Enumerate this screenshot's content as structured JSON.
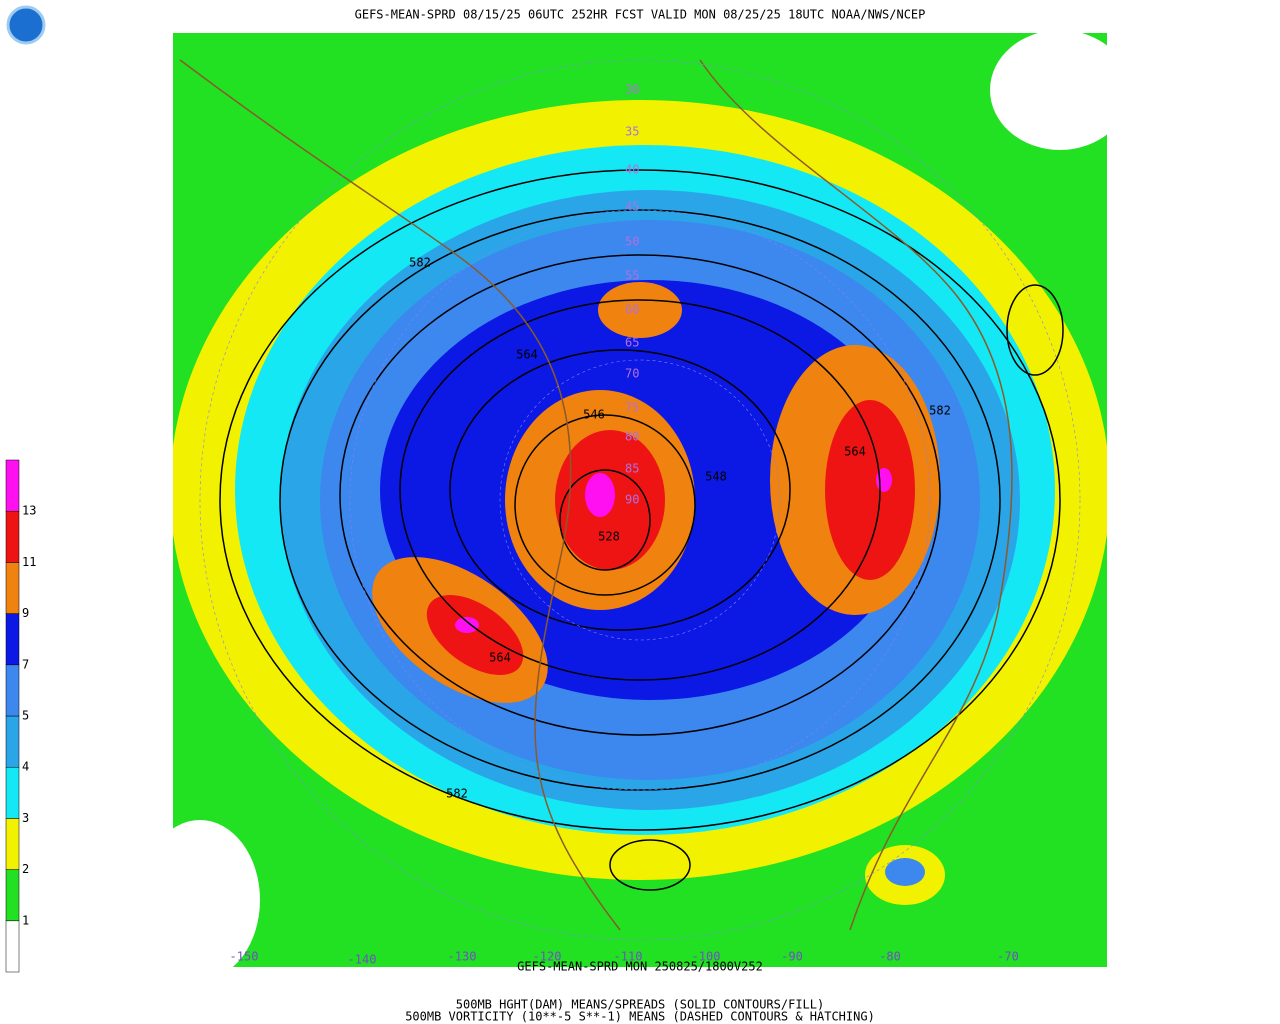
{
  "header": {
    "title": "GEFS-MEAN-SPRD 08/15/25 06UTC 252HR FCST VALID MON 08/25/25 18UTC NOAA/NWS/NCEP"
  },
  "legend": {
    "colors": [
      "#ffffff",
      "#22e022",
      "#f2f200",
      "#14e8f4",
      "#2aa6e8",
      "#3c88ee",
      "#0c18e4",
      "#f0820f",
      "#ee1414",
      "#ff10f0"
    ],
    "labels": [
      "1",
      "2",
      "3",
      "4",
      "5",
      "7",
      "9",
      "11",
      "13"
    ]
  },
  "map": {
    "lat_labels": [
      "30",
      "35",
      "40",
      "45",
      "50",
      "55",
      "60",
      "65",
      "70",
      "75",
      "80",
      "85",
      "90"
    ],
    "lon_labels": [
      "-150",
      "-140",
      "-130",
      "-120",
      "-110",
      "-100",
      "-90",
      "-80",
      "-70"
    ],
    "contour_labels": [
      "582",
      "564",
      "546",
      "548",
      "528",
      "582",
      "564",
      "564",
      "582"
    ]
  },
  "footer": {
    "lines": [
      "GEFS-MEAN-SPRD MON 250825/1800V252",
      "500MB HGHT(DAM) MEANS/SPREADS (SOLID CONTOURS/FILL)",
      "500MB VORTICITY (10**-5 S**-1) MEANS (DASHED CONTOURS & HATCHING)"
    ]
  }
}
